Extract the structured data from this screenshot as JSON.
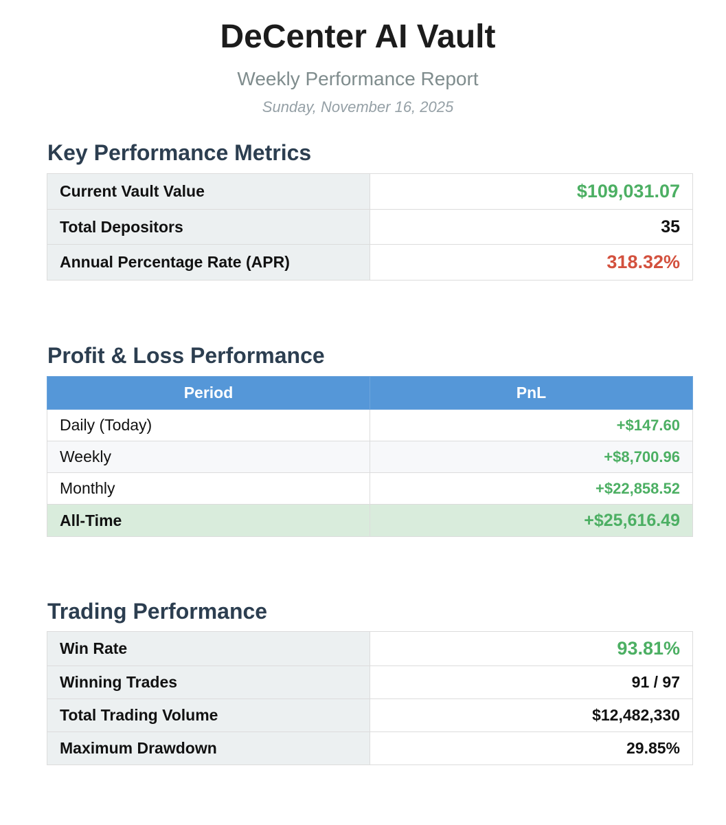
{
  "header": {
    "title": "DeCenter AI Vault",
    "subtitle": "Weekly Performance Report",
    "date": "Sunday, November 16, 2025"
  },
  "key_metrics": {
    "heading": "Key Performance Metrics",
    "rows": [
      {
        "label": "Current Vault Value",
        "value": "$109,031.07"
      },
      {
        "label": "Total Depositors",
        "value": "35"
      },
      {
        "label": "Annual Percentage Rate (APR)",
        "value": "318.32%"
      }
    ]
  },
  "pnl": {
    "heading": "Profit & Loss Performance",
    "columns": [
      "Period",
      "PnL"
    ],
    "rows": [
      {
        "period": "Daily (Today)",
        "value": "+$147.60"
      },
      {
        "period": "Weekly",
        "value": "+$8,700.96"
      },
      {
        "period": "Monthly",
        "value": "+$22,858.52"
      },
      {
        "period": "All-Time",
        "value": "+$25,616.49"
      }
    ]
  },
  "trading": {
    "heading": "Trading Performance",
    "rows": [
      {
        "label": "Win Rate",
        "value": "93.81%"
      },
      {
        "label": "Winning Trades",
        "value": "91 / 97"
      },
      {
        "label": "Total Trading Volume",
        "value": "$12,482,330"
      },
      {
        "label": "Maximum Drawdown",
        "value": "29.85%"
      }
    ]
  },
  "colors": {
    "positive": "#4caf63",
    "negative": "#d3513e",
    "header_blue": "#5597d8",
    "heading_text": "#2c3e50"
  }
}
